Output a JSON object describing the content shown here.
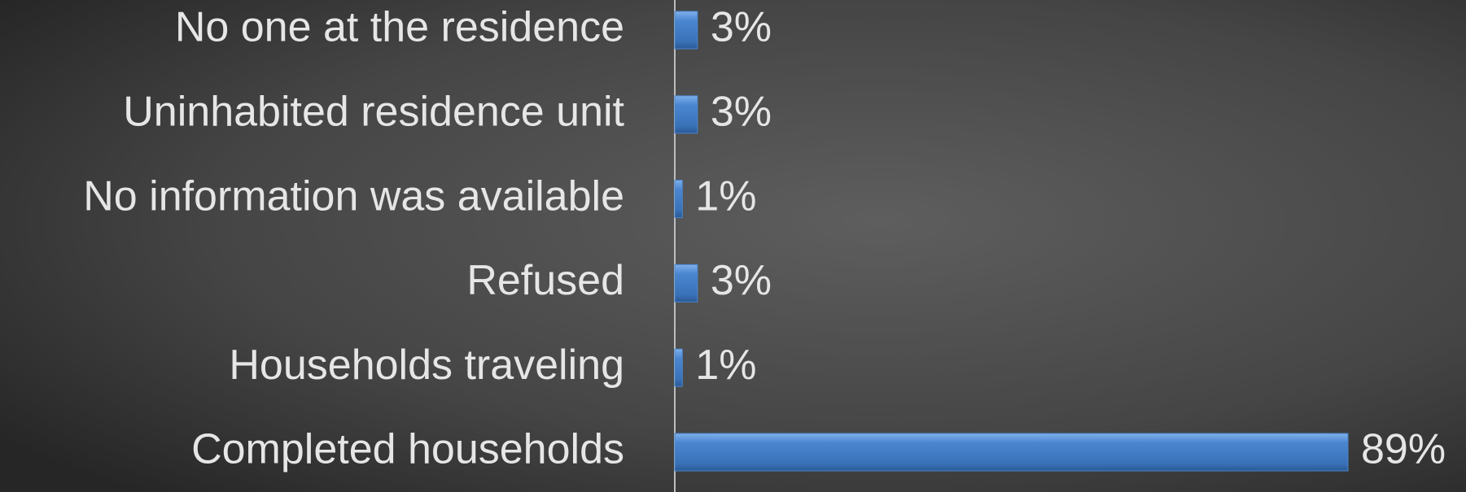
{
  "chart_data": {
    "type": "bar",
    "orientation": "horizontal",
    "categories": [
      "No one at the residence",
      "Uninhabited residence unit",
      "No information was available",
      "Refused",
      "Households traveling",
      "Completed households"
    ],
    "values": [
      3,
      3,
      1,
      3,
      1,
      89
    ],
    "value_labels": [
      "3%",
      "3%",
      "1%",
      "3%",
      "1%",
      "89%"
    ],
    "color": "#4a86d0"
  }
}
